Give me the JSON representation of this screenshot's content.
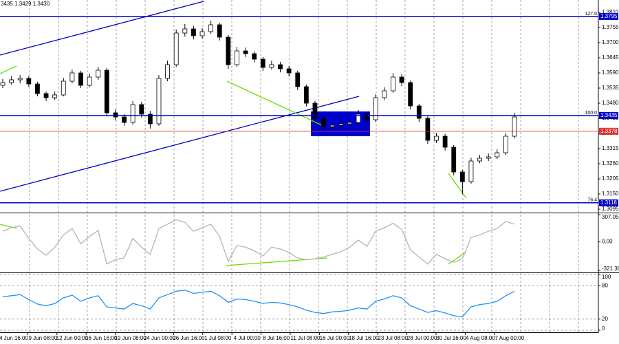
{
  "chart_data": [
    {
      "type": "candlestick",
      "header_text": "3435 1.3429 1.3430",
      "ylim": [
        1.3085,
        1.385
      ],
      "yticks": [
        {
          "value": 1.381,
          "label": "1.3810"
        },
        {
          "value": 1.3755,
          "label": "1.3755"
        },
        {
          "value": 1.37,
          "label": "1.3700"
        },
        {
          "value": 1.3645,
          "label": "1.3645"
        },
        {
          "value": 1.359,
          "label": "1.3590"
        },
        {
          "value": 1.3535,
          "label": "1.3535"
        },
        {
          "value": 1.348,
          "label": "1.3480"
        },
        {
          "value": 1.3425,
          "label": "1.3425"
        },
        {
          "value": 1.337,
          "label": "1.3370"
        },
        {
          "value": 1.3315,
          "label": "1.3315"
        },
        {
          "value": 1.326,
          "label": "1.3260"
        },
        {
          "value": 1.3205,
          "label": "1.3205"
        },
        {
          "value": 1.315,
          "label": "1.3150"
        },
        {
          "value": 1.3095,
          "label": "1.3095"
        }
      ],
      "levels": [
        {
          "value": 1.3795,
          "color": "#0000cc",
          "fib": "127.0"
        },
        {
          "value": 1.3435,
          "color": "#0000cc",
          "fib": "100.0"
        },
        {
          "value": 1.3378,
          "color": "#e03030"
        },
        {
          "value": 1.3118,
          "color": "#0000cc",
          "fib": "76.4"
        }
      ],
      "xtick_labels": [
        "4 Jun 16:00",
        "9 Jun 08:00",
        "12 Jun 00:00",
        "16 Jun 16:00",
        "19 Jun 08:00",
        "24 Jun 00:00",
        "26 Jun 16:00",
        "1 Jul 08:00",
        "4 Jul 00:00",
        "8 Jul 16:00",
        "11 Jul 08:00",
        "16 Jul 00:00",
        "18 Jul 16:00",
        "23 Jul 08:00",
        "28 Jul 00:00",
        "30 Jul 16:00",
        "4 Aug 08:00",
        "7 Aug 00:00"
      ],
      "up_color": "#ffffff",
      "down_color": "#000000",
      "ohlc": [
        [
          1.3545,
          1.3568,
          1.3535,
          1.3555
        ],
        [
          1.3555,
          1.3578,
          1.3548,
          1.3565
        ],
        [
          1.3565,
          1.3582,
          1.3552,
          1.357
        ],
        [
          1.357,
          1.3578,
          1.354,
          1.355
        ],
        [
          1.355,
          1.3558,
          1.3505,
          1.3515
        ],
        [
          1.3515,
          1.3522,
          1.3488,
          1.35
        ],
        [
          1.35,
          1.3522,
          1.3492,
          1.351
        ],
        [
          1.351,
          1.3572,
          1.3505,
          1.356
        ],
        [
          1.356,
          1.3602,
          1.3552,
          1.359
        ],
        [
          1.359,
          1.3598,
          1.3535,
          1.3545
        ],
        [
          1.3545,
          1.3588,
          1.3538,
          1.3575
        ],
        [
          1.3575,
          1.3612,
          1.3565,
          1.36
        ],
        [
          1.36,
          1.3608,
          1.3432,
          1.3445
        ],
        [
          1.3445,
          1.3458,
          1.3418,
          1.343
        ],
        [
          1.343,
          1.344,
          1.3398,
          1.341
        ],
        [
          1.341,
          1.3488,
          1.3402,
          1.3475
        ],
        [
          1.3475,
          1.3485,
          1.3428,
          1.344
        ],
        [
          1.344,
          1.3452,
          1.3388,
          1.3405
        ],
        [
          1.3405,
          1.3582,
          1.3398,
          1.357
        ],
        [
          1.357,
          1.3635,
          1.356,
          1.362
        ],
        [
          1.362,
          1.3748,
          1.3612,
          1.3735
        ],
        [
          1.3735,
          1.3768,
          1.3722,
          1.375
        ],
        [
          1.375,
          1.376,
          1.3712,
          1.3725
        ],
        [
          1.3725,
          1.3752,
          1.3715,
          1.374
        ],
        [
          1.374,
          1.378,
          1.3732,
          1.3765
        ],
        [
          1.3765,
          1.3772,
          1.3708,
          1.372
        ],
        [
          1.372,
          1.3728,
          1.3605,
          1.362
        ],
        [
          1.362,
          1.3685,
          1.3612,
          1.367
        ],
        [
          1.367,
          1.3682,
          1.3648,
          1.366
        ],
        [
          1.366,
          1.3668,
          1.3628,
          1.364
        ],
        [
          1.364,
          1.3648,
          1.3598,
          1.361
        ],
        [
          1.361,
          1.3635,
          1.3602,
          1.362
        ],
        [
          1.362,
          1.363,
          1.3592,
          1.3605
        ],
        [
          1.3605,
          1.3615,
          1.3578,
          1.359
        ],
        [
          1.359,
          1.3598,
          1.3528,
          1.354
        ],
        [
          1.354,
          1.3548,
          1.3468,
          1.348
        ],
        [
          1.348,
          1.3488,
          1.3412,
          1.3425
        ],
        [
          1.3425,
          1.3435,
          1.3382,
          1.3395
        ],
        [
          1.3395,
          1.3412,
          1.3385,
          1.34
        ],
        [
          1.34,
          1.3418,
          1.339,
          1.3405
        ],
        [
          1.3405,
          1.3422,
          1.3395,
          1.341
        ],
        [
          1.341,
          1.3455,
          1.3402,
          1.344
        ],
        [
          1.344,
          1.3448,
          1.3408,
          1.342
        ],
        [
          1.342,
          1.3512,
          1.3412,
          1.35
        ],
        [
          1.35,
          1.3538,
          1.3492,
          1.3525
        ],
        [
          1.3525,
          1.359,
          1.3518,
          1.3575
        ],
        [
          1.3575,
          1.3585,
          1.3542,
          1.3555
        ],
        [
          1.3555,
          1.3562,
          1.3458,
          1.347
        ],
        [
          1.347,
          1.3478,
          1.3412,
          1.3425
        ],
        [
          1.3425,
          1.3432,
          1.3332,
          1.3345
        ],
        [
          1.3345,
          1.3372,
          1.3335,
          1.336
        ],
        [
          1.336,
          1.3368,
          1.3308,
          1.332
        ],
        [
          1.332,
          1.3328,
          1.3218,
          1.323
        ],
        [
          1.323,
          1.3238,
          1.315,
          1.3195
        ],
        [
          1.3195,
          1.3282,
          1.3188,
          1.327
        ],
        [
          1.327,
          1.3292,
          1.3262,
          1.328
        ],
        [
          1.328,
          1.3298,
          1.327,
          1.3285
        ],
        [
          1.3285,
          1.3312,
          1.3278,
          1.33
        ],
        [
          1.33,
          1.3372,
          1.3292,
          1.336
        ],
        [
          1.336,
          1.3445,
          1.3352,
          1.343
        ]
      ]
    },
    {
      "type": "line",
      "color": "#b4b4b4",
      "ylim": [
        -321.389,
        307.0503
      ],
      "yticks": [
        307.0503,
        {
          "value": 0,
          "label": "0.00"
        },
        -321.389
      ],
      "values": [
        120,
        160,
        180,
        40,
        -80,
        -150,
        -60,
        80,
        150,
        -20,
        60,
        130,
        -250,
        -200,
        -180,
        40,
        -60,
        -140,
        150,
        200,
        250,
        220,
        120,
        160,
        200,
        60,
        -220,
        -40,
        -60,
        -100,
        -160,
        -60,
        -80,
        -120,
        -180,
        -200,
        -190,
        -170,
        -140,
        -110,
        -60,
        20,
        -50,
        120,
        160,
        210,
        140,
        -90,
        -170,
        -250,
        -140,
        -190,
        -230,
        -190,
        50,
        80,
        120,
        150,
        230,
        200
      ]
    },
    {
      "type": "line",
      "color": "#1e90ff",
      "grid": true,
      "ylim": [
        0,
        100
      ],
      "yticks": [
        100,
        80,
        20,
        0
      ],
      "values": [
        60,
        62,
        64,
        55,
        47,
        44,
        48,
        58,
        63,
        52,
        58,
        62,
        42,
        40,
        38,
        48,
        44,
        38,
        58,
        64,
        70,
        72,
        66,
        68,
        70,
        62,
        50,
        56,
        55,
        52,
        48,
        50,
        49,
        46,
        42,
        36,
        32,
        30,
        33,
        34,
        36,
        40,
        38,
        52,
        56,
        62,
        58,
        44,
        38,
        32,
        35,
        31,
        26,
        24,
        42,
        46,
        48,
        52,
        62,
        70
      ]
    }
  ]
}
